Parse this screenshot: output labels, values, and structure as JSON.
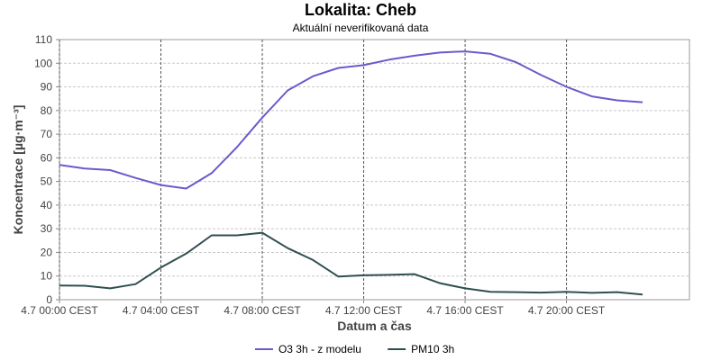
{
  "chart_data": {
    "type": "line",
    "title": "Lokalita: Cheb",
    "subtitle": "Aktuální neverifikovaná data",
    "xlabel": "Datum a čas",
    "ylabel": "Koncentrace [µg·m⁻³]",
    "ylim": [
      0,
      110
    ],
    "yticks": [
      0,
      10,
      20,
      30,
      40,
      50,
      60,
      70,
      80,
      90,
      100,
      110
    ],
    "xlim": [
      0,
      24.85
    ],
    "xticks": [
      {
        "x": 0,
        "label": "4.7 00:00 CEST"
      },
      {
        "x": 4,
        "label": "4.7 04:00 CEST"
      },
      {
        "x": 8,
        "label": "4.7 08:00 CEST"
      },
      {
        "x": 12,
        "label": "4.7 12:00 CEST"
      },
      {
        "x": 16,
        "label": "4.7 16:00 CEST"
      },
      {
        "x": 20,
        "label": "4.7 20:00 CEST"
      }
    ],
    "x": [
      0,
      1,
      2,
      3,
      4,
      5,
      6,
      7,
      8,
      9,
      10,
      11,
      12,
      13,
      14,
      15,
      16,
      17,
      18,
      19,
      20,
      21,
      22,
      23
    ],
    "grid": true,
    "legend": "bottom",
    "series": [
      {
        "name": "O3 3h - z modelu",
        "color": "#6a5acd",
        "values": [
          57,
          55.5,
          54.8,
          51.5,
          48.5,
          47,
          53.5,
          64.5,
          77,
          88.5,
          94.5,
          98,
          99.2,
          101.5,
          103.2,
          104.5,
          105,
          104,
          100.5,
          95,
          90,
          86,
          84.3,
          83.5
        ]
      },
      {
        "name": "PM10 3h",
        "color": "#2f4f4f",
        "values": [
          6,
          5.9,
          4.8,
          6.6,
          13.6,
          19.5,
          27.2,
          27.2,
          28.3,
          21.8,
          16.8,
          9.8,
          10.3,
          10.5,
          10.8,
          7,
          4.8,
          3.3,
          3.2,
          3.0,
          3.3,
          2.9,
          3.2,
          2.2
        ]
      }
    ]
  }
}
